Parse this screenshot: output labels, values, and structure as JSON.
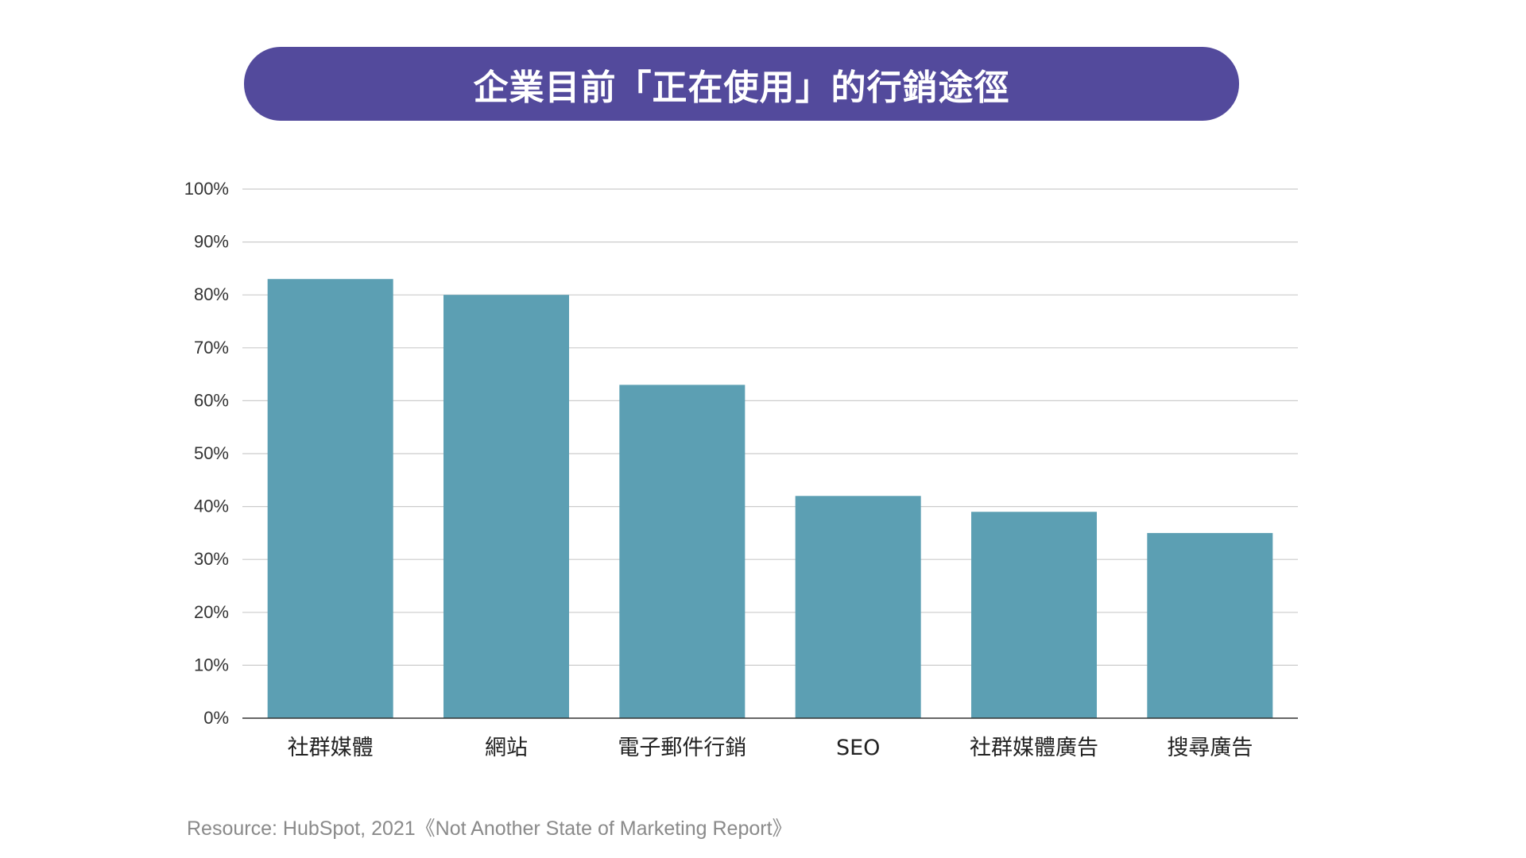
{
  "colors": {
    "title_background": "#534a9c",
    "bar": "#5c9fb3",
    "gridline": "#cccccc",
    "axis": "#333333",
    "tick_text": "#333333",
    "category_text": "#222222",
    "source_text": "#8a8a8a"
  },
  "chart_data": {
    "type": "bar",
    "title": "企業目前「正在使用」的行銷途徑",
    "categories": [
      "社群媒體",
      "網站",
      "電子郵件行銷",
      "SEO",
      "社群媒體廣告",
      "搜尋廣告"
    ],
    "values": [
      83,
      80,
      63,
      42,
      39,
      35
    ],
    "y_ticks": [
      "0%",
      "10%",
      "20%",
      "30%",
      "40%",
      "50%",
      "60%",
      "70%",
      "80%",
      "90%",
      "100%"
    ],
    "ylim": [
      0,
      100
    ],
    "unit": "%",
    "grid": true,
    "legend": "none",
    "xlabel": "",
    "ylabel": ""
  },
  "footer": {
    "source": "Resource: HubSpot, 2021《Not Another State of Marketing Report》"
  }
}
